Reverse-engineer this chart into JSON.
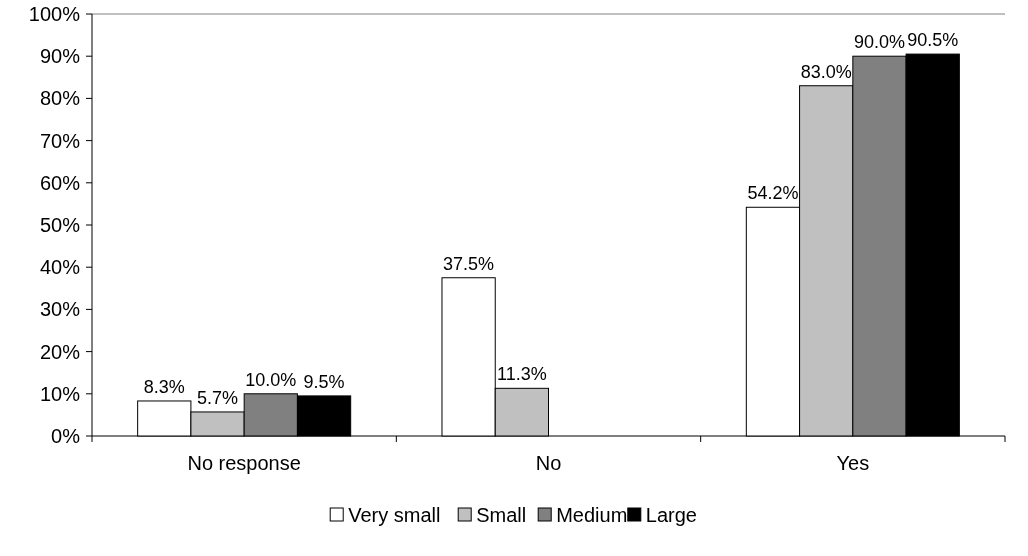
{
  "chart_data": {
    "type": "bar",
    "categories": [
      "No response",
      "No",
      "Yes"
    ],
    "series": [
      {
        "name": "Very small",
        "color": "#ffffff",
        "values": [
          8.3,
          37.5,
          54.2
        ],
        "value_labels": [
          "8.3%",
          "37.5%",
          "54.2%"
        ]
      },
      {
        "name": "Small",
        "color": "#c0c0c0",
        "values": [
          5.7,
          11.3,
          83.0
        ],
        "value_labels": [
          "5.7%",
          "11.3%",
          "83.0%"
        ]
      },
      {
        "name": "Medium",
        "color": "#808080",
        "values": [
          10.0,
          null,
          90.0
        ],
        "value_labels": [
          "10.0%",
          null,
          "90.0%"
        ]
      },
      {
        "name": "Large",
        "color": "#000000",
        "values": [
          9.5,
          null,
          90.5
        ],
        "value_labels": [
          "9.5%",
          null,
          "90.5%"
        ]
      }
    ],
    "ylim": [
      0,
      100
    ],
    "yticks": [
      {
        "value": 0,
        "label": "0%"
      },
      {
        "value": 10,
        "label": "10%"
      },
      {
        "value": 20,
        "label": "20%"
      },
      {
        "value": 30,
        "label": "30%"
      },
      {
        "value": 40,
        "label": "40%"
      },
      {
        "value": 50,
        "label": "50%"
      },
      {
        "value": 60,
        "label": "60%"
      },
      {
        "value": 70,
        "label": "70%"
      },
      {
        "value": 80,
        "label": "80%"
      },
      {
        "value": 90,
        "label": "90%"
      },
      {
        "value": 100,
        "label": "100%"
      }
    ],
    "legend": "bottom"
  }
}
